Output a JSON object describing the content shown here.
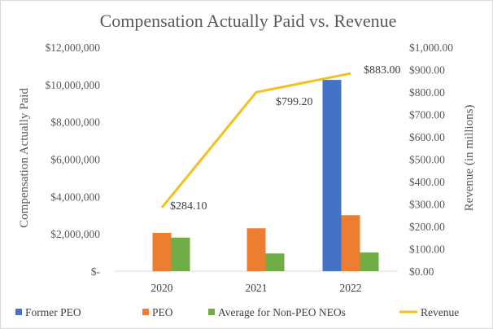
{
  "chart_data": {
    "type": "bar",
    "title": "Compensation Actually Paid vs. Revenue",
    "categories": [
      "2020",
      "2021",
      "2022"
    ],
    "ylabel_left": "Compensation Actually Paid",
    "ylabel_right": "Revenue (in millions)",
    "ylim_left": [
      0,
      12000000
    ],
    "ylim_right": [
      0,
      1000
    ],
    "yticks_left": [
      "$-",
      "$2,000,000",
      "$4,000,000",
      "$6,000,000",
      "$8,000,000",
      "$10,000,000",
      "$12,000,000"
    ],
    "yticks_right": [
      "$0.00",
      "$100.00",
      "$200.00",
      "$300.00",
      "$400.00",
      "$500.00",
      "$600.00",
      "$700.00",
      "$800.00",
      "$900.00",
      "$1,000.00"
    ],
    "grid": false,
    "legend_position": "bottom",
    "series": [
      {
        "name": "Former PEO",
        "kind": "bar",
        "axis": "left",
        "color": "#4472c4",
        "values": [
          0,
          0,
          10250000
        ]
      },
      {
        "name": "PEO",
        "kind": "bar",
        "axis": "left",
        "color": "#ed7d31",
        "values": [
          2050000,
          2300000,
          3000000
        ]
      },
      {
        "name": "Average for Non-PEO NEOs",
        "kind": "bar",
        "axis": "left",
        "color": "#70ad47",
        "values": [
          1800000,
          950000,
          1000000
        ]
      },
      {
        "name": "Revenue",
        "kind": "line",
        "axis": "right",
        "color": "#f4c020",
        "values": [
          284.1,
          799.2,
          883.0
        ],
        "labels": [
          "$284.10",
          "$799.20",
          "$883.00"
        ]
      }
    ]
  }
}
